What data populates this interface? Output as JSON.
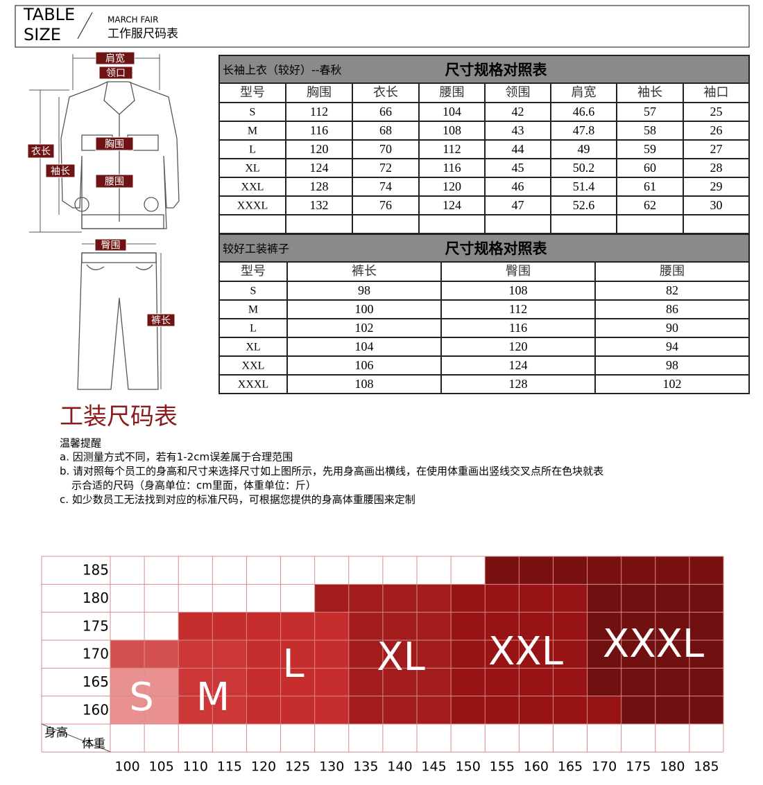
{
  "header": {
    "title_line1": "TABLE",
    "title_line2": "SIZE",
    "brand": "MARCH FAIR",
    "subtitle": "工作服尺码表"
  },
  "diagram": {
    "shoulder": "肩宽",
    "collar": "领口",
    "length": "衣长",
    "sleeve": "袖长",
    "chest": "胸围",
    "waist": "腰围",
    "hip": "臀围",
    "pants_length": "裤长"
  },
  "jacket_table": {
    "title": "长袖上衣（较好）--春秋",
    "heading": "尺寸规格对照表",
    "columns": [
      "型号",
      "胸围",
      "衣长",
      "腰围",
      "领围",
      "肩宽",
      "袖长",
      "袖口"
    ],
    "rows": [
      [
        "S",
        112,
        66,
        104,
        42,
        46.6,
        57,
        25
      ],
      [
        "M",
        116,
        68,
        108,
        43,
        47.8,
        58,
        26
      ],
      [
        "L",
        120,
        70,
        112,
        44,
        49,
        59,
        27
      ],
      [
        "XL",
        124,
        72,
        116,
        45,
        50.2,
        60,
        28
      ],
      [
        "XXL",
        128,
        74,
        120,
        46,
        51.4,
        61,
        29
      ],
      [
        "XXXL",
        132,
        76,
        124,
        47,
        52.6,
        62,
        30
      ]
    ]
  },
  "pants_table": {
    "title": "较好工装裤子",
    "heading": "尺寸规格对照表",
    "columns": [
      "型号",
      "裤长",
      "臀围",
      "腰围"
    ],
    "rows": [
      [
        "S",
        98,
        108,
        82
      ],
      [
        "M",
        100,
        112,
        86
      ],
      [
        "L",
        102,
        116,
        90
      ],
      [
        "XL",
        104,
        120,
        94
      ],
      [
        "XXL",
        106,
        124,
        98
      ],
      [
        "XXXL",
        108,
        128,
        102
      ]
    ]
  },
  "notes": {
    "title": "工装尺码表",
    "subtitle": "温馨提醒",
    "items": [
      "a. 因测量方式不同，若有1-2cm误差属于合理范围",
      "b. 请对照每个员工的身高和尺寸来选择尺寸如上图所示，先用身高画出横线，在使用体重画出竖线交叉点所在色块就表",
      "示合适的尺码（身高单位：cm里面，体重单位：斤）",
      "c. 如少数员工无法找到对应的标准尺码，可根据您提供的身高体重腰围来定制"
    ]
  },
  "size_chart": {
    "row_header": "身高",
    "col_header": "体重",
    "heights": [
      185,
      180,
      175,
      170,
      165,
      160
    ],
    "weights": [
      100,
      105,
      110,
      115,
      120,
      125,
      130,
      135,
      140,
      145,
      150,
      155,
      160,
      165,
      170,
      175,
      180,
      185
    ],
    "sizes": [
      "S",
      "M",
      "L",
      "XL",
      "XXL",
      "XXXL"
    ]
  }
}
